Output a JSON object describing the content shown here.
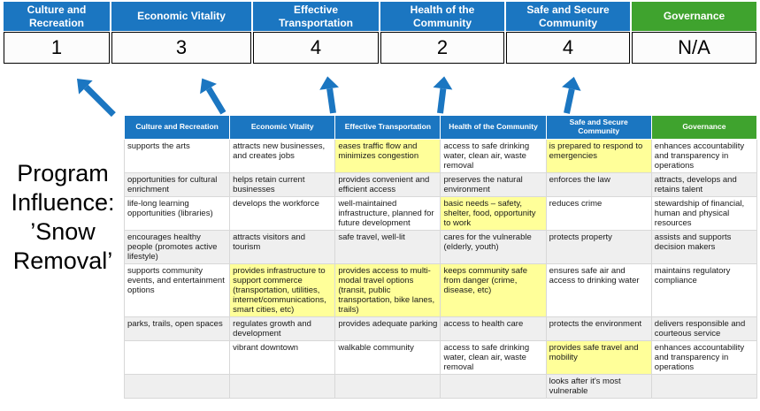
{
  "program": {
    "label": "Program Influence: ’Snow Removal’"
  },
  "colors": {
    "header_blue": "#1B76C1",
    "header_green": "#3FA32E",
    "highlight_yellow": "#FFFF99",
    "arrow_blue": "#1B76C1"
  },
  "scorecard": {
    "columns": [
      {
        "label": "Culture and Recreation",
        "score": "1",
        "theme": "blue"
      },
      {
        "label": "Economic Vitality",
        "score": "3",
        "theme": "blue"
      },
      {
        "label": "Effective Transportation",
        "score": "4",
        "theme": "blue"
      },
      {
        "label": "Health of the Community",
        "score": "2",
        "theme": "blue"
      },
      {
        "label": "Safe and Secure Community",
        "score": "4",
        "theme": "blue"
      },
      {
        "label": "Governance",
        "score": "N/A",
        "theme": "green"
      }
    ]
  },
  "matrix": {
    "headers": [
      {
        "label": "Culture and Recreation",
        "theme": "blue"
      },
      {
        "label": "Economic Vitality",
        "theme": "blue"
      },
      {
        "label": "Effective Transportation",
        "theme": "blue"
      },
      {
        "label": "Health of the Community",
        "theme": "blue"
      },
      {
        "label": "Safe and Secure Community",
        "theme": "blue"
      },
      {
        "label": "Governance",
        "theme": "green"
      }
    ],
    "rows": [
      [
        {
          "text": "supports the arts",
          "highlight": false
        },
        {
          "text": "attracts new businesses, and creates jobs",
          "highlight": false
        },
        {
          "text": "eases traffic flow and minimizes congestion",
          "highlight": true
        },
        {
          "text": "access to safe drinking water, clean air, waste removal",
          "highlight": false
        },
        {
          "text": "is prepared to respond to emergencies",
          "highlight": true
        },
        {
          "text": "enhances accountability and transparency in operations",
          "highlight": false
        }
      ],
      [
        {
          "text": "opportunities for cultural enrichment",
          "highlight": false
        },
        {
          "text": "helps retain current businesses",
          "highlight": true
        },
        {
          "text": "provides convenient and efficient access",
          "highlight": true
        },
        {
          "text": "preserves the natural environment",
          "highlight": false
        },
        {
          "text": "enforces the law",
          "highlight": false
        },
        {
          "text": "attracts, develops and retains talent",
          "highlight": false
        }
      ],
      [
        {
          "text": "life-long learning opportunities (libraries)",
          "highlight": false
        },
        {
          "text": "develops the workforce",
          "highlight": false
        },
        {
          "text": "well-maintained infrastructure, planned for future development",
          "highlight": false
        },
        {
          "text": "basic needs – safety, shelter, food, opportunity to work",
          "highlight": true
        },
        {
          "text": "reduces crime",
          "highlight": false
        },
        {
          "text": "stewardship of financial, human and physical resources",
          "highlight": false
        }
      ],
      [
        {
          "text": "encourages healthy people (promotes active lifestyle)",
          "highlight": false
        },
        {
          "text": "attracts visitors and tourism",
          "highlight": false
        },
        {
          "text": "safe travel, well-lit",
          "highlight": true
        },
        {
          "text": "cares for the vulnerable (elderly, youth)",
          "highlight": true
        },
        {
          "text": "protects property",
          "highlight": true
        },
        {
          "text": "assists and supports decision makers",
          "highlight": false
        }
      ],
      [
        {
          "text": "supports community events, and entertainment options",
          "highlight": false
        },
        {
          "text": "provides infrastructure to support commerce (transportation, utilities, internet/communications, smart cities, etc)",
          "highlight": true
        },
        {
          "text": "provides access to multi-modal travel options (transit, public transportation, bike lanes, trails)",
          "highlight": true
        },
        {
          "text": "keeps community safe from danger (crime, disease, etc)",
          "highlight": true
        },
        {
          "text": "ensures safe air and access to drinking water",
          "highlight": false
        },
        {
          "text": "maintains regulatory compliance",
          "highlight": false
        }
      ],
      [
        {
          "text": "parks, trails, open spaces",
          "highlight": true
        },
        {
          "text": "regulates growth and development",
          "highlight": false
        },
        {
          "text": "provides adequate parking",
          "highlight": false
        },
        {
          "text": "access to health care",
          "highlight": false
        },
        {
          "text": "protects the environment",
          "highlight": false
        },
        {
          "text": "delivers responsible and courteous service",
          "highlight": false
        }
      ],
      [
        {
          "text": "",
          "highlight": false
        },
        {
          "text": "vibrant downtown",
          "highlight": false
        },
        {
          "text": "walkable community",
          "highlight": false
        },
        {
          "text": "access to safe drinking water, clean air, waste removal",
          "highlight": false
        },
        {
          "text": "provides safe travel and mobility",
          "highlight": true
        },
        {
          "text": "enhances accountability and transparency in operations",
          "highlight": false
        }
      ],
      [
        {
          "text": "",
          "highlight": false
        },
        {
          "text": "",
          "highlight": false
        },
        {
          "text": "",
          "highlight": false
        },
        {
          "text": "",
          "highlight": false
        },
        {
          "text": "looks after it's most vulnerable",
          "highlight": true
        },
        {
          "text": "",
          "highlight": false
        }
      ]
    ]
  }
}
